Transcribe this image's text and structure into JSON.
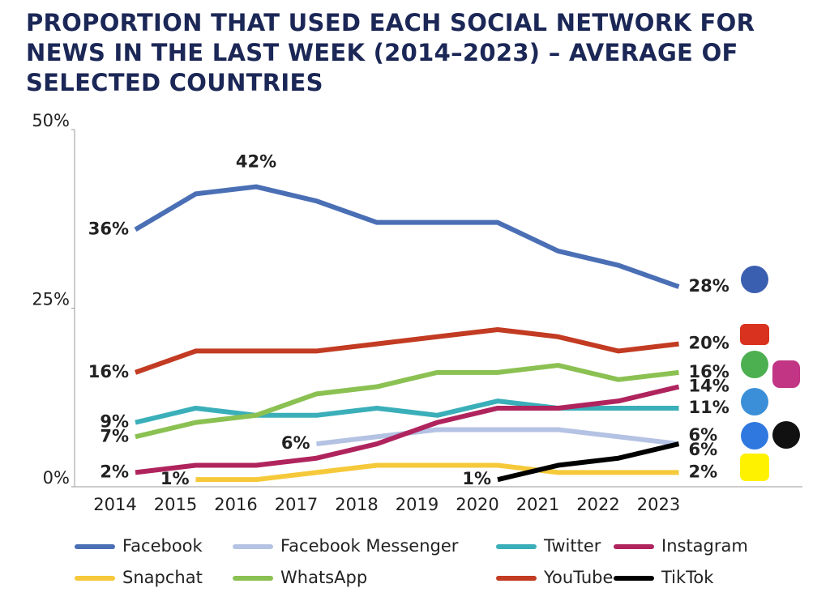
{
  "chart_data": {
    "type": "line",
    "title": "PROPORTION THAT USED EACH SOCIAL NETWORK FOR NEWS IN THE LAST WEEK (2014–2023) – AVERAGE OF SELECTED COUNTRIES",
    "categories": [
      "2014",
      "2015",
      "2016",
      "2017",
      "2018",
      "2019",
      "2020",
      "2021",
      "2022",
      "2023"
    ],
    "ylim": [
      0,
      50
    ],
    "yticks": [
      {
        "value": 0,
        "label": "0%"
      },
      {
        "value": 25,
        "label": "25%"
      },
      {
        "value": 50,
        "label": "50%"
      }
    ],
    "grid": false,
    "legend": "bottom",
    "series": [
      {
        "name": "Facebook",
        "color": "#4a6fb5",
        "values": [
          36,
          41,
          42,
          40,
          37,
          37,
          37,
          33,
          31,
          28
        ],
        "value_labels": [
          "36%",
          null,
          "42%",
          null,
          null,
          null,
          null,
          null,
          null,
          "28%"
        ]
      },
      {
        "name": "Facebook Messenger",
        "color": "#b4c2e3",
        "values": [
          null,
          null,
          null,
          6,
          7,
          8,
          8,
          8,
          7,
          6
        ],
        "value_labels": [
          null,
          null,
          null,
          "6%",
          null,
          null,
          null,
          null,
          null,
          "6%"
        ]
      },
      {
        "name": "Twitter",
        "color": "#3aafb9",
        "values": [
          9,
          11,
          10,
          10,
          11,
          10,
          12,
          11,
          11,
          11
        ],
        "value_labels": [
          "9%",
          null,
          null,
          null,
          null,
          null,
          null,
          null,
          null,
          "11%"
        ]
      },
      {
        "name": "Instagram",
        "color": "#b0245e",
        "values": [
          2,
          3,
          3,
          4,
          6,
          9,
          11,
          11,
          12,
          14
        ],
        "value_labels": [
          "2%",
          null,
          null,
          null,
          null,
          null,
          null,
          null,
          null,
          "14%"
        ]
      },
      {
        "name": "Snapchat",
        "color": "#f5c93a",
        "values": [
          null,
          1,
          1,
          2,
          3,
          3,
          3,
          2,
          2,
          2
        ],
        "value_labels": [
          null,
          "1%",
          null,
          null,
          null,
          null,
          null,
          null,
          null,
          "2%"
        ]
      },
      {
        "name": "WhatsApp",
        "color": "#8bc152",
        "values": [
          7,
          9,
          10,
          13,
          14,
          16,
          16,
          17,
          15,
          16
        ],
        "value_labels": [
          "7%",
          null,
          null,
          null,
          null,
          null,
          null,
          null,
          null,
          "16%"
        ]
      },
      {
        "name": "YouTube",
        "color": "#c23b22",
        "values": [
          16,
          19,
          19,
          19,
          20,
          21,
          22,
          21,
          19,
          20
        ],
        "value_labels": [
          "16%",
          null,
          null,
          null,
          null,
          null,
          null,
          null,
          null,
          "20%"
        ]
      },
      {
        "name": "TikTok",
        "color": "#000000",
        "values": [
          null,
          null,
          null,
          null,
          null,
          null,
          1,
          3,
          4,
          6
        ],
        "value_labels": [
          null,
          null,
          null,
          null,
          null,
          null,
          "1%",
          null,
          null,
          "6%"
        ]
      }
    ]
  }
}
